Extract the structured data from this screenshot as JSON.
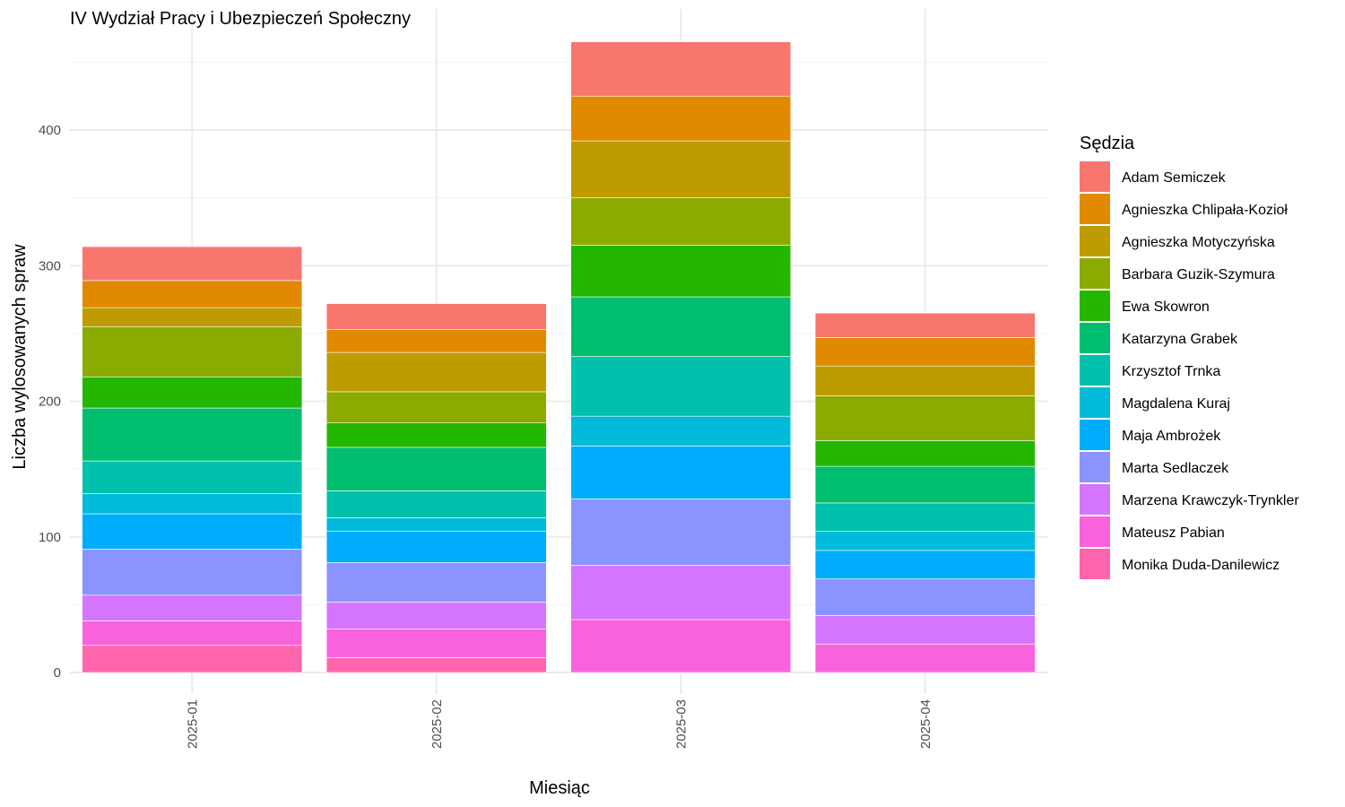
{
  "chart_data": {
    "type": "bar",
    "stacked": true,
    "title": "IV Wydział Pracy i Ubezpieczeń Społeczny",
    "xlabel": "Miesiąc",
    "ylabel": "Liczba wylosowanych spraw",
    "ylim": [
      0,
      485
    ],
    "yticks": [
      0,
      100,
      200,
      300,
      400
    ],
    "grid": true,
    "legend_title": "Sędzia",
    "legend_position": "right",
    "categories": [
      "2025-01",
      "2025-02",
      "2025-03",
      "2025-04"
    ],
    "series": [
      {
        "name": "Adam Semiczek",
        "color": "#F8766D",
        "values": [
          25,
          19,
          40,
          18
        ]
      },
      {
        "name": "Agnieszka Chlipała-Kozioł",
        "color": "#E18A00",
        "values": [
          20,
          17,
          33,
          21
        ]
      },
      {
        "name": "Agnieszka Motyczyńska",
        "color": "#BE9C00",
        "values": [
          14,
          29,
          42,
          22
        ]
      },
      {
        "name": "Barbara Guzik-Szymura",
        "color": "#8CAB00",
        "values": [
          37,
          23,
          35,
          33
        ]
      },
      {
        "name": "Ewa Skowron",
        "color": "#24B700",
        "values": [
          23,
          18,
          38,
          19
        ]
      },
      {
        "name": "Katarzyna Grabek",
        "color": "#00BE70",
        "values": [
          39,
          32,
          44,
          27
        ]
      },
      {
        "name": "Krzysztof Trnka",
        "color": "#00C1AB",
        "values": [
          24,
          20,
          44,
          21
        ]
      },
      {
        "name": "Magdalena Kuraj",
        "color": "#00BBDA",
        "values": [
          15,
          10,
          22,
          14
        ]
      },
      {
        "name": "Maja Ambrożek",
        "color": "#00ACFC",
        "values": [
          26,
          23,
          39,
          21
        ]
      },
      {
        "name": "Marta Sedlaczek",
        "color": "#8B93FF",
        "values": [
          34,
          29,
          49,
          27
        ]
      },
      {
        "name": "Marzena Krawczyk-Trynkler",
        "color": "#D575FE",
        "values": [
          19,
          20,
          40,
          21
        ]
      },
      {
        "name": "Mateusz Pabian",
        "color": "#F962DD",
        "values": [
          18,
          21,
          39,
          21
        ]
      },
      {
        "name": "Monika Duda-Danilewicz",
        "color": "#FF65AC",
        "values": [
          20,
          11,
          0,
          0
        ]
      }
    ]
  }
}
